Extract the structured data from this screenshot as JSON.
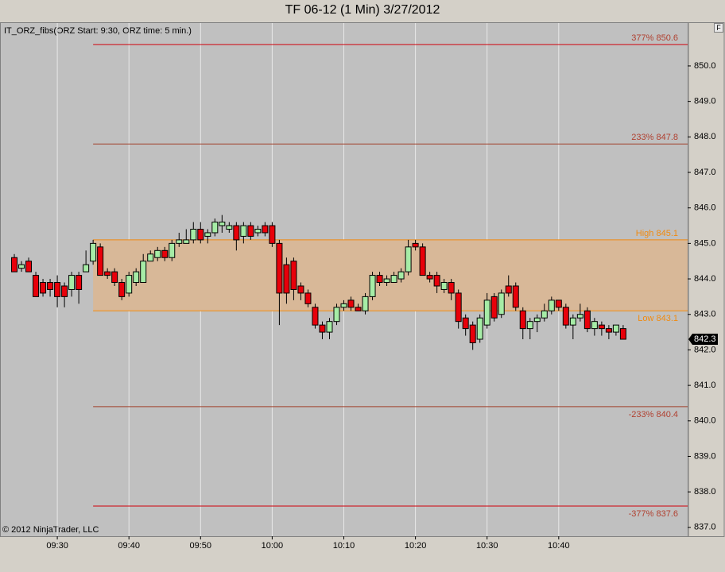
{
  "chart_data": {
    "type": "candlestick",
    "title": "TF 06-12 (1 Min)  3/27/2012",
    "indicator": "IT_ORZ_fibs(ORZ Start: 9:30, ORZ time: 5 min.)",
    "copyright": "© 2012 NinjaTrader, LLC",
    "panel_button": "F",
    "x": [
      "09:24",
      "09:25",
      "09:26",
      "09:27",
      "09:28",
      "09:29",
      "09:30",
      "09:31",
      "09:32",
      "09:33",
      "09:34",
      "09:35",
      "09:36",
      "09:37",
      "09:38",
      "09:39",
      "09:40",
      "09:41",
      "09:42",
      "09:43",
      "09:44",
      "09:45",
      "09:46",
      "09:47",
      "09:48",
      "09:49",
      "09:50",
      "09:51",
      "09:52",
      "09:53",
      "09:54",
      "09:55",
      "09:56",
      "09:57",
      "09:58",
      "09:59",
      "10:00",
      "10:01",
      "10:02",
      "10:03",
      "10:04",
      "10:05",
      "10:06",
      "10:07",
      "10:08",
      "10:09",
      "10:10",
      "10:11",
      "10:12",
      "10:13",
      "10:14",
      "10:15",
      "10:16",
      "10:17",
      "10:18",
      "10:19",
      "10:20",
      "10:21",
      "10:22",
      "10:23",
      "10:24",
      "10:25",
      "10:26",
      "10:27",
      "10:28",
      "10:29",
      "10:30",
      "10:31",
      "10:32",
      "10:33",
      "10:34",
      "10:35",
      "10:36",
      "10:37",
      "10:38",
      "10:39",
      "10:40",
      "10:41",
      "10:42",
      "10:43",
      "10:44",
      "10:45",
      "10:46",
      "10:47",
      "10:48",
      "10:49"
    ],
    "open": [
      844.6,
      844.3,
      844.5,
      844.1,
      843.9,
      843.9,
      843.9,
      843.8,
      843.7,
      844.1,
      844.2,
      844.5,
      844.9,
      844.2,
      844.2,
      843.9,
      843.6,
      843.9,
      843.9,
      844.5,
      844.6,
      844.8,
      844.6,
      845.0,
      845.0,
      845.1,
      845.4,
      845.2,
      845.3,
      845.5,
      845.4,
      845.5,
      845.2,
      845.5,
      845.3,
      845.5,
      845.5,
      845.0,
      844.4,
      844.5,
      843.8,
      843.6,
      843.2,
      842.7,
      842.5,
      842.8,
      843.2,
      843.4,
      843.2,
      843.1,
      843.5,
      844.1,
      843.9,
      843.9,
      844.0,
      844.2,
      845.0,
      844.9,
      844.1,
      844.1,
      843.7,
      843.9,
      843.6,
      842.9,
      842.7,
      842.3,
      842.7,
      843.5,
      843.0,
      843.8,
      843.8,
      843.1,
      842.6,
      842.8,
      842.9,
      843.1,
      843.4,
      843.2,
      842.7,
      842.9,
      843.1,
      842.6,
      842.7,
      842.6,
      842.5,
      842.6
    ],
    "high": [
      844.7,
      844.5,
      844.6,
      844.2,
      844.0,
      844.0,
      844.1,
      843.9,
      844.2,
      844.2,
      844.8,
      845.1,
      845.0,
      844.3,
      844.3,
      844.0,
      844.2,
      844.3,
      844.7,
      844.8,
      844.9,
      844.9,
      845.1,
      845.3,
      845.4,
      845.6,
      845.6,
      845.4,
      845.7,
      845.8,
      845.6,
      845.6,
      845.6,
      845.6,
      845.5,
      845.6,
      845.6,
      845.1,
      844.6,
      844.6,
      843.9,
      843.7,
      843.3,
      842.8,
      842.9,
      843.3,
      843.4,
      843.5,
      843.3,
      843.6,
      844.2,
      844.2,
      844.1,
      844.2,
      844.3,
      845.1,
      845.1,
      845.0,
      844.2,
      844.2,
      844.0,
      844.0,
      843.7,
      843.0,
      842.8,
      843.0,
      843.6,
      843.6,
      843.7,
      844.1,
      843.9,
      843.2,
      842.9,
      843.0,
      843.3,
      843.5,
      843.4,
      843.3,
      843.0,
      843.3,
      843.2,
      842.9,
      842.8,
      842.7,
      842.7,
      842.7
    ],
    "low": [
      844.2,
      844.2,
      844.2,
      843.5,
      843.5,
      843.5,
      843.2,
      843.2,
      843.5,
      843.3,
      844.2,
      844.4,
      844.1,
      844.0,
      843.8,
      843.4,
      843.5,
      843.8,
      843.9,
      844.5,
      844.5,
      844.5,
      844.5,
      844.9,
      845.0,
      845.0,
      845.0,
      845.0,
      845.2,
      845.3,
      845.3,
      844.8,
      845.0,
      845.1,
      845.2,
      845.2,
      844.9,
      842.7,
      843.3,
      843.4,
      843.4,
      843.2,
      842.6,
      842.3,
      842.3,
      842.7,
      843.1,
      843.1,
      843.1,
      843.0,
      843.4,
      843.8,
      843.8,
      843.9,
      843.9,
      844.1,
      844.8,
      844.1,
      843.9,
      843.6,
      843.6,
      843.4,
      842.6,
      842.4,
      842.0,
      842.2,
      842.6,
      842.8,
      842.9,
      843.5,
      843.1,
      842.3,
      842.3,
      842.5,
      842.8,
      843.0,
      843.1,
      842.6,
      842.3,
      842.8,
      842.5,
      842.4,
      842.4,
      842.3,
      842.4,
      842.3
    ],
    "close": [
      844.2,
      844.4,
      844.2,
      843.5,
      843.6,
      843.7,
      843.5,
      843.5,
      844.1,
      843.7,
      844.4,
      845.0,
      844.1,
      844.1,
      843.9,
      843.5,
      844.1,
      844.2,
      844.5,
      844.7,
      844.8,
      844.6,
      845.0,
      845.1,
      845.1,
      845.4,
      845.1,
      845.3,
      845.6,
      845.6,
      845.5,
      845.1,
      845.5,
      845.2,
      845.4,
      845.3,
      845.0,
      843.6,
      843.6,
      843.7,
      843.6,
      843.3,
      842.7,
      842.5,
      842.8,
      843.2,
      843.3,
      843.2,
      843.1,
      843.5,
      844.1,
      843.9,
      844.0,
      844.1,
      844.2,
      844.9,
      844.9,
      844.1,
      844.0,
      843.8,
      843.9,
      843.6,
      842.8,
      842.6,
      842.2,
      842.9,
      843.4,
      842.9,
      843.6,
      843.6,
      843.2,
      842.6,
      842.8,
      842.9,
      843.1,
      843.4,
      843.2,
      842.7,
      842.9,
      843.0,
      842.6,
      842.8,
      842.6,
      842.5,
      842.7,
      842.3
    ],
    "up_color": "#a6eca6",
    "down_color": "#e8000a",
    "last_price": 842.3,
    "levels": [
      {
        "label": "377% 850.6",
        "value": 850.6,
        "color": "#d0000a",
        "text_color": "#b04030",
        "place": "above"
      },
      {
        "label": "233% 847.8",
        "value": 847.8,
        "color": "#a0402a",
        "text_color": "#b04030",
        "place": "above"
      },
      {
        "label": "High 845.1",
        "value": 845.1,
        "color": "#f08a10",
        "text_color": "#f08a10",
        "place": "above",
        "shade": "#d8b898"
      },
      {
        "label": "Low 843.1",
        "value": 843.1,
        "color": "#f08a10",
        "text_color": "#f08a10",
        "place": "below",
        "shade": "#d8b898"
      },
      {
        "label": "-233% 840.4",
        "value": 840.4,
        "color": "#a0402a",
        "text_color": "#b04030",
        "place": "below"
      },
      {
        "label": "-377% 837.6",
        "value": 837.6,
        "color": "#d0000a",
        "text_color": "#b04030",
        "place": "below"
      }
    ],
    "levels_start": "09:35",
    "xlim": [
      "09:22",
      "10:58"
    ],
    "xticks": [
      "09:30",
      "09:40",
      "09:50",
      "10:00",
      "10:10",
      "10:20",
      "10:30",
      "10:40"
    ],
    "ylim": [
      836.75,
      851.23
    ],
    "yticks": [
      {
        "value": 837,
        "label": "837.0"
      },
      {
        "value": 838,
        "label": "838.0"
      },
      {
        "value": 839,
        "label": "839.0"
      },
      {
        "value": 840,
        "label": "840.0"
      },
      {
        "value": 841,
        "label": "841.0"
      },
      {
        "value": 842,
        "label": "842.0"
      },
      {
        "value": 843,
        "label": "843.0"
      },
      {
        "value": 844,
        "label": "844.0"
      },
      {
        "value": 845,
        "label": "845.0"
      },
      {
        "value": 846,
        "label": "846.0"
      },
      {
        "value": 847,
        "label": "847.0"
      },
      {
        "value": 848,
        "label": "848.0"
      },
      {
        "value": 849,
        "label": "849.0"
      },
      {
        "value": 850,
        "label": "850.0"
      }
    ],
    "grid": true
  }
}
